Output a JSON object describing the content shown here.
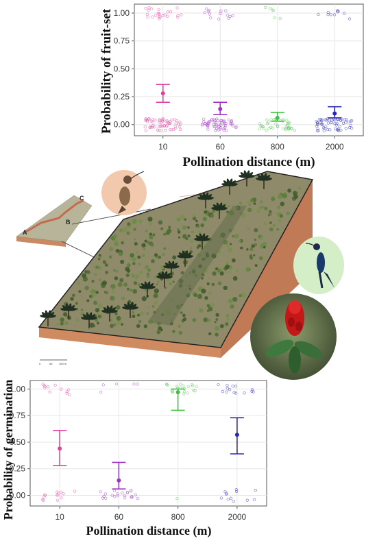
{
  "chart_data": [
    {
      "type": "scatter",
      "title": "",
      "xlabel": "Pollination distance (m)",
      "ylabel": "Probability of fruit-set",
      "categories": [
        "10",
        "60",
        "800",
        "2000"
      ],
      "yticks": [
        "0.00",
        "0.25",
        "0.50",
        "0.75",
        "1.00"
      ],
      "ylim": [
        -0.1,
        1.08
      ],
      "colors": [
        "#e040a0",
        "#a030c8",
        "#40c040",
        "#2828b8"
      ],
      "estimates": [
        0.28,
        0.14,
        0.06,
        0.1
      ],
      "ci_low": [
        0.2,
        0.09,
        0.03,
        0.06
      ],
      "ci_high": [
        0.36,
        0.2,
        0.11,
        0.16
      ],
      "raw_counts_at_1": [
        24,
        14,
        6,
        10
      ],
      "raw_counts_at_0": [
        60,
        60,
        40,
        60
      ],
      "grid": true
    },
    {
      "type": "scatter",
      "title": "",
      "xlabel": "Pollination distance (m)",
      "ylabel": "Probability of germination",
      "categories": [
        "10",
        "60",
        "800",
        "2000"
      ],
      "yticks": [
        "0.00",
        "0.25",
        "0.50",
        "0.75",
        "1.00"
      ],
      "ylim": [
        -0.1,
        1.08
      ],
      "colors": [
        "#e040a0",
        "#a030c8",
        "#40c040",
        "#2828b8"
      ],
      "estimates": [
        0.44,
        0.14,
        0.97,
        0.57
      ],
      "ci_low": [
        0.28,
        0.06,
        0.8,
        0.39
      ],
      "ci_high": [
        0.61,
        0.31,
        1.0,
        0.73
      ],
      "raw_counts_at_1": [
        12,
        5,
        22,
        14
      ],
      "raw_counts_at_0": [
        14,
        22,
        1,
        12
      ],
      "grid": true
    }
  ],
  "illustration": {
    "inset_labels": [
      "A",
      "B",
      "C"
    ],
    "scale_bar_labels": [
      "0",
      "50",
      "100 m"
    ],
    "icons": [
      "hummingbird-hermit-icon",
      "hummingbird-blue-icon",
      "red-flower-icon"
    ]
  }
}
